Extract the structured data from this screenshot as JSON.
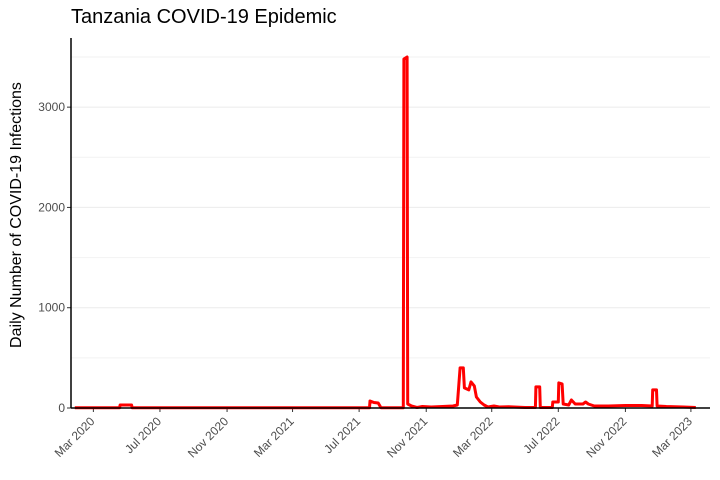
{
  "chart_data": {
    "type": "line",
    "title": "Tanzania COVID-19 Epidemic",
    "xlabel": "",
    "ylabel": "Daily Number of COVID-19 Infections",
    "ylim": [
      0,
      3500
    ],
    "yticks": [
      0,
      1000,
      2000,
      3000
    ],
    "xlim": [
      "2020-01-20",
      "2023-04-05"
    ],
    "xticks": [
      {
        "date": "2020-03-01",
        "label": "Mar 2020"
      },
      {
        "date": "2020-07-01",
        "label": "Jul 2020"
      },
      {
        "date": "2020-11-01",
        "label": "Nov 2020"
      },
      {
        "date": "2021-03-01",
        "label": "Mar 2021"
      },
      {
        "date": "2021-07-01",
        "label": "Jul 2021"
      },
      {
        "date": "2021-11-01",
        "label": "Nov 2021"
      },
      {
        "date": "2022-03-01",
        "label": "Mar 2022"
      },
      {
        "date": "2022-07-01",
        "label": "Jul 2022"
      },
      {
        "date": "2022-11-01",
        "label": "Nov 2022"
      },
      {
        "date": "2023-03-01",
        "label": "Mar 2023"
      }
    ],
    "grid": true,
    "legend": "none",
    "line_color": "#ff0000",
    "series": [
      {
        "points": [
          [
            "2020-01-27",
            2
          ],
          [
            "2020-04-18",
            2
          ],
          [
            "2020-04-19",
            30
          ],
          [
            "2020-05-10",
            30
          ],
          [
            "2020-05-11",
            2
          ],
          [
            "2021-07-20",
            2
          ],
          [
            "2021-07-21",
            70
          ],
          [
            "2021-07-28",
            55
          ],
          [
            "2021-08-05",
            50
          ],
          [
            "2021-08-10",
            2
          ],
          [
            "2021-09-20",
            2
          ],
          [
            "2021-09-21",
            3480
          ],
          [
            "2021-09-27",
            3500
          ],
          [
            "2021-09-28",
            40
          ],
          [
            "2021-10-05",
            20
          ],
          [
            "2021-10-15",
            5
          ],
          [
            "2021-10-25",
            15
          ],
          [
            "2021-11-10",
            10
          ],
          [
            "2021-12-01",
            15
          ],
          [
            "2021-12-20",
            20
          ],
          [
            "2021-12-28",
            30
          ],
          [
            "2022-01-02",
            400
          ],
          [
            "2022-01-08",
            400
          ],
          [
            "2022-01-10",
            200
          ],
          [
            "2022-01-18",
            180
          ],
          [
            "2022-01-22",
            260
          ],
          [
            "2022-01-28",
            220
          ],
          [
            "2022-02-01",
            110
          ],
          [
            "2022-02-08",
            60
          ],
          [
            "2022-02-15",
            30
          ],
          [
            "2022-02-22",
            10
          ],
          [
            "2022-03-05",
            20
          ],
          [
            "2022-03-15",
            10
          ],
          [
            "2022-04-01",
            12
          ],
          [
            "2022-05-01",
            5
          ],
          [
            "2022-05-20",
            5
          ],
          [
            "2022-05-21",
            210
          ],
          [
            "2022-05-28",
            210
          ],
          [
            "2022-05-29",
            5
          ],
          [
            "2022-06-20",
            5
          ],
          [
            "2022-06-21",
            60
          ],
          [
            "2022-07-01",
            60
          ],
          [
            "2022-07-02",
            250
          ],
          [
            "2022-07-08",
            240
          ],
          [
            "2022-07-10",
            40
          ],
          [
            "2022-07-20",
            30
          ],
          [
            "2022-07-25",
            80
          ],
          [
            "2022-08-01",
            40
          ],
          [
            "2022-08-15",
            40
          ],
          [
            "2022-08-20",
            60
          ],
          [
            "2022-08-25",
            40
          ],
          [
            "2022-09-05",
            20
          ],
          [
            "2022-10-01",
            20
          ],
          [
            "2022-11-01",
            25
          ],
          [
            "2022-12-01",
            25
          ],
          [
            "2022-12-20",
            20
          ],
          [
            "2022-12-21",
            180
          ],
          [
            "2022-12-28",
            180
          ],
          [
            "2022-12-29",
            20
          ],
          [
            "2023-01-15",
            15
          ],
          [
            "2023-02-15",
            10
          ],
          [
            "2023-03-10",
            5
          ]
        ]
      }
    ]
  }
}
